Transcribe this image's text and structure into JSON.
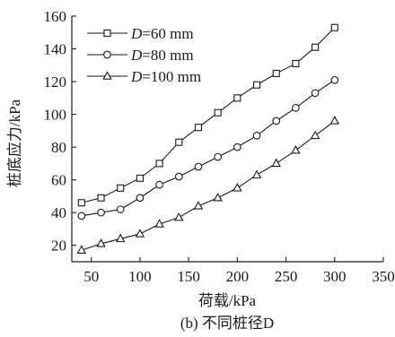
{
  "chart_data": {
    "type": "line",
    "caption": "(b) 不同桩径D",
    "xlabel": "荷载/kPa",
    "ylabel": "桩底应力/kPa",
    "xlim": [
      30,
      350
    ],
    "ylim": [
      10,
      160
    ],
    "xticks": [
      50,
      100,
      150,
      200,
      250,
      300,
      350
    ],
    "yticks": [
      20,
      40,
      60,
      80,
      100,
      120,
      140,
      160
    ],
    "grid": false,
    "legend_position": "top-left",
    "x": [
      40,
      60,
      80,
      100,
      120,
      140,
      160,
      180,
      200,
      220,
      240,
      260,
      280,
      300
    ],
    "series": [
      {
        "name": "D=60 mm",
        "label_var": "D",
        "label_rest": "=60 mm",
        "marker": "square",
        "values": [
          46,
          49,
          55,
          61,
          70,
          83,
          92,
          101,
          110,
          118,
          125,
          131,
          141,
          153
        ]
      },
      {
        "name": "D=80 mm",
        "label_var": "D",
        "label_rest": "=80 mm",
        "marker": "circle",
        "values": [
          38,
          40,
          42,
          49,
          57,
          62,
          68,
          74,
          80,
          87,
          96,
          104,
          113,
          121
        ]
      },
      {
        "name": "D=100 mm",
        "label_var": "D",
        "label_rest": "=100 mm",
        "marker": "triangle",
        "values": [
          17,
          21,
          24,
          27,
          33,
          37,
          44,
          49,
          55,
          63,
          70,
          78,
          87,
          96
        ]
      }
    ]
  }
}
